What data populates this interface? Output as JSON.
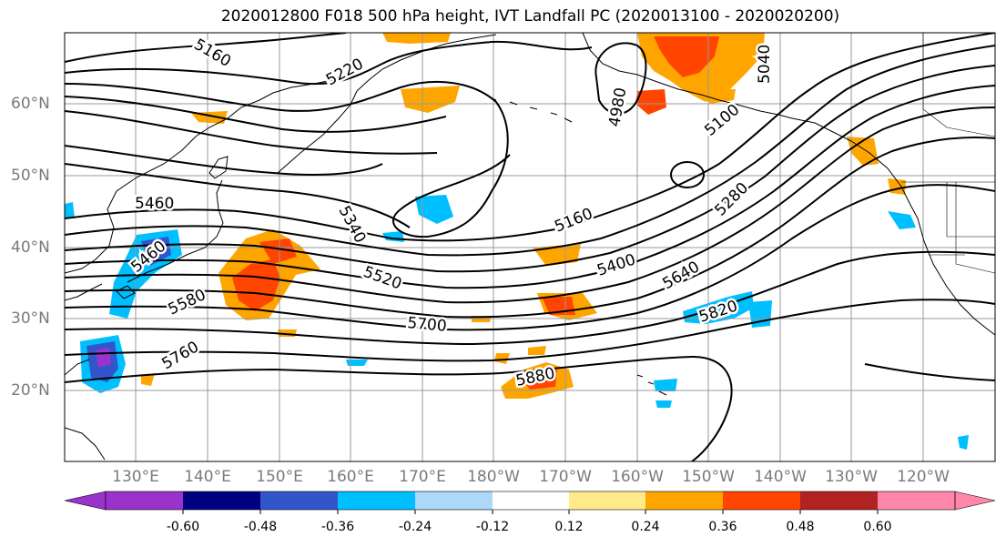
{
  "title": "2020012800 F018 500 hPa height, IVT Landfall PC (2020013100 - 2020020200)",
  "lat_labels": [
    "60°N",
    "50°N",
    "40°N",
    "30°N",
    "20°N"
  ],
  "lon_labels": [
    "130°E",
    "140°E",
    "150°E",
    "160°E",
    "170°E",
    "180°W",
    "170°W",
    "160°W",
    "150°W",
    "140°W",
    "130°W",
    "120°W"
  ],
  "contour_labels": [
    "5160",
    "5220",
    "5040",
    "4980",
    "5100",
    "5460",
    "5340",
    "5160",
    "5280",
    "5460",
    "5400",
    "5520",
    "5640",
    "5580",
    "5700",
    "5820",
    "5760",
    "5880"
  ],
  "colorbar": {
    "tick_labels": [
      "-0.60",
      "-0.48",
      "-0.36",
      "-0.24",
      "-0.12",
      "0.12",
      "0.24",
      "0.36",
      "0.48",
      "0.60"
    ],
    "colors": [
      "#9933cc",
      "#000080",
      "#3355cc",
      "#00bfff",
      "#add8f8",
      "#ffffff",
      "#ffeb8a",
      "#ffa500",
      "#ff4500",
      "#b22222",
      "#ff88aa"
    ]
  }
}
